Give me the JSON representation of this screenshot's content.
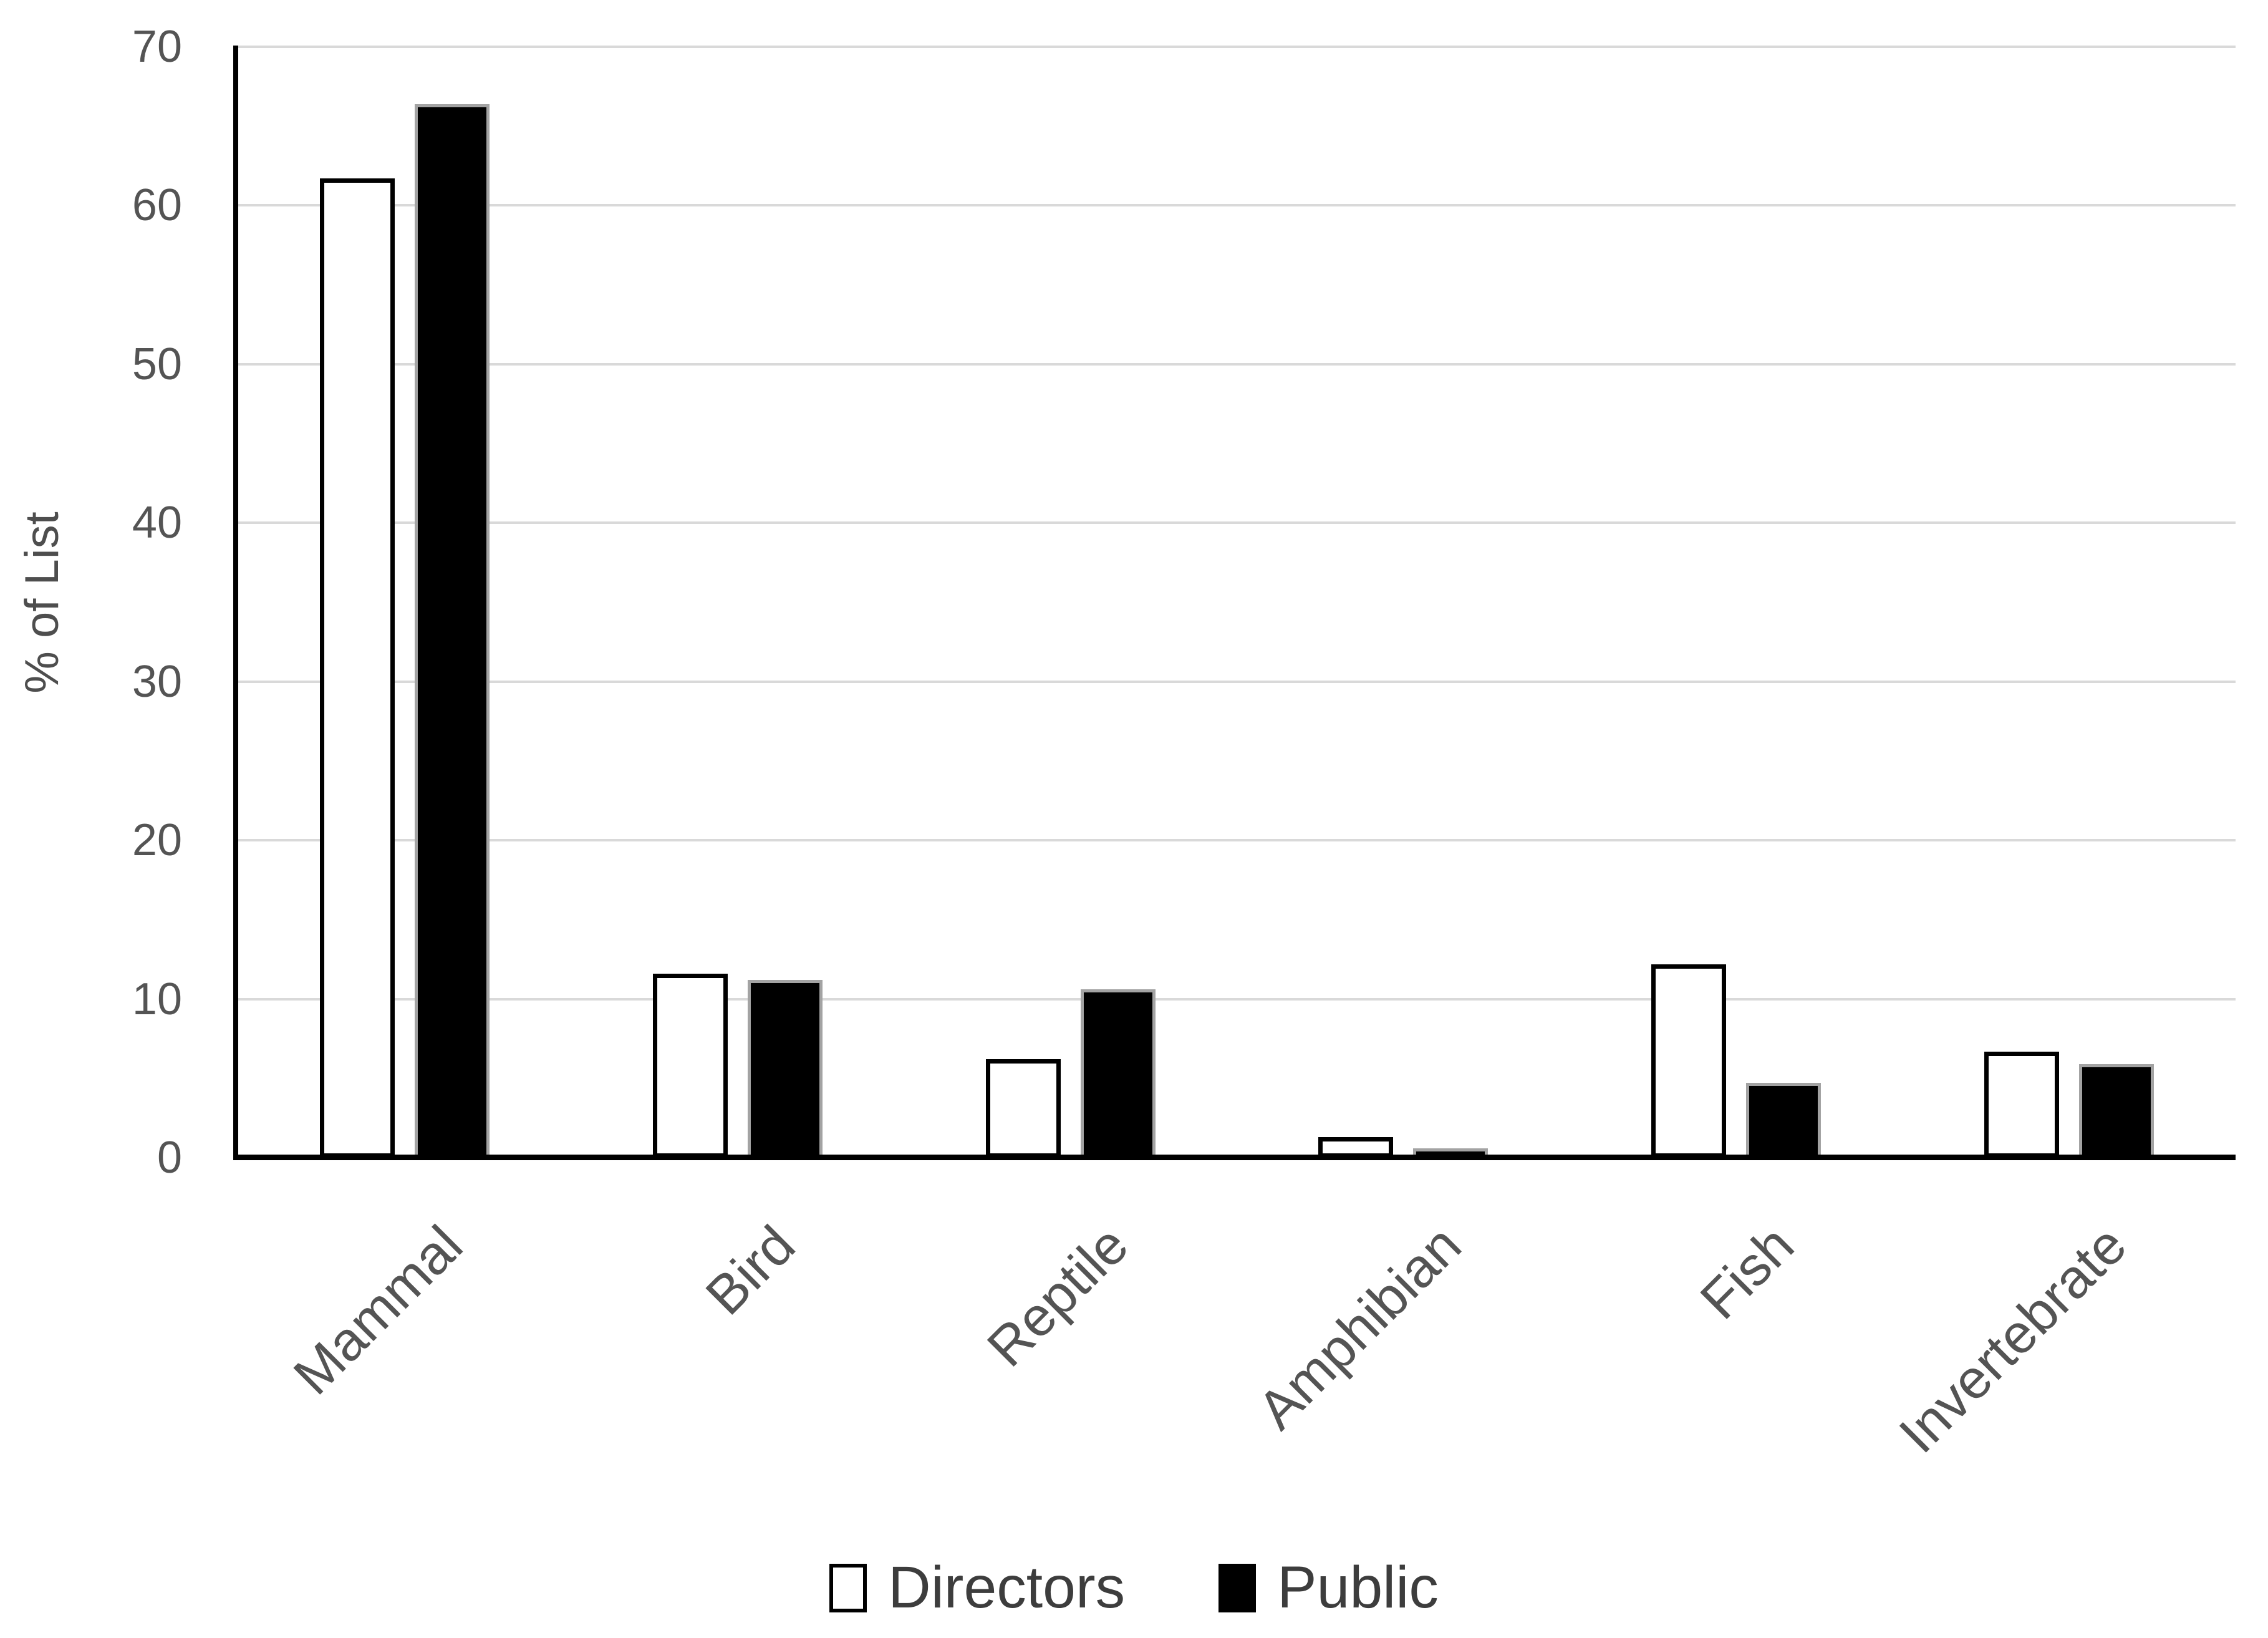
{
  "chart_data": {
    "type": "bar",
    "title": "",
    "categories": [
      "Mammal",
      "Bird",
      "Reptile",
      "Amphibian",
      "Fish",
      "Invertebrate"
    ],
    "series": [
      {
        "name": "Directors",
        "values": [
          61.7,
          11.6,
          6.2,
          1.3,
          12.2,
          6.7
        ],
        "fill": "#ffffff",
        "border": "#000000"
      },
      {
        "name": "Public",
        "values": [
          66.4,
          11.2,
          10.6,
          0.6,
          4.7,
          5.9
        ],
        "fill": "#000000",
        "border": "#a3a3a3"
      }
    ],
    "xlabel": "",
    "ylabel": "% of List",
    "ylim": [
      0,
      70
    ],
    "yticks": [
      0,
      10,
      20,
      30,
      40,
      50,
      60,
      70
    ],
    "grid": true,
    "gridline_color": "#d9d9d9",
    "axis_color": "#000000",
    "tick_text_color": "#545454",
    "legend_position": "bottom",
    "legend_labels": [
      "Directors",
      "Public"
    ]
  }
}
